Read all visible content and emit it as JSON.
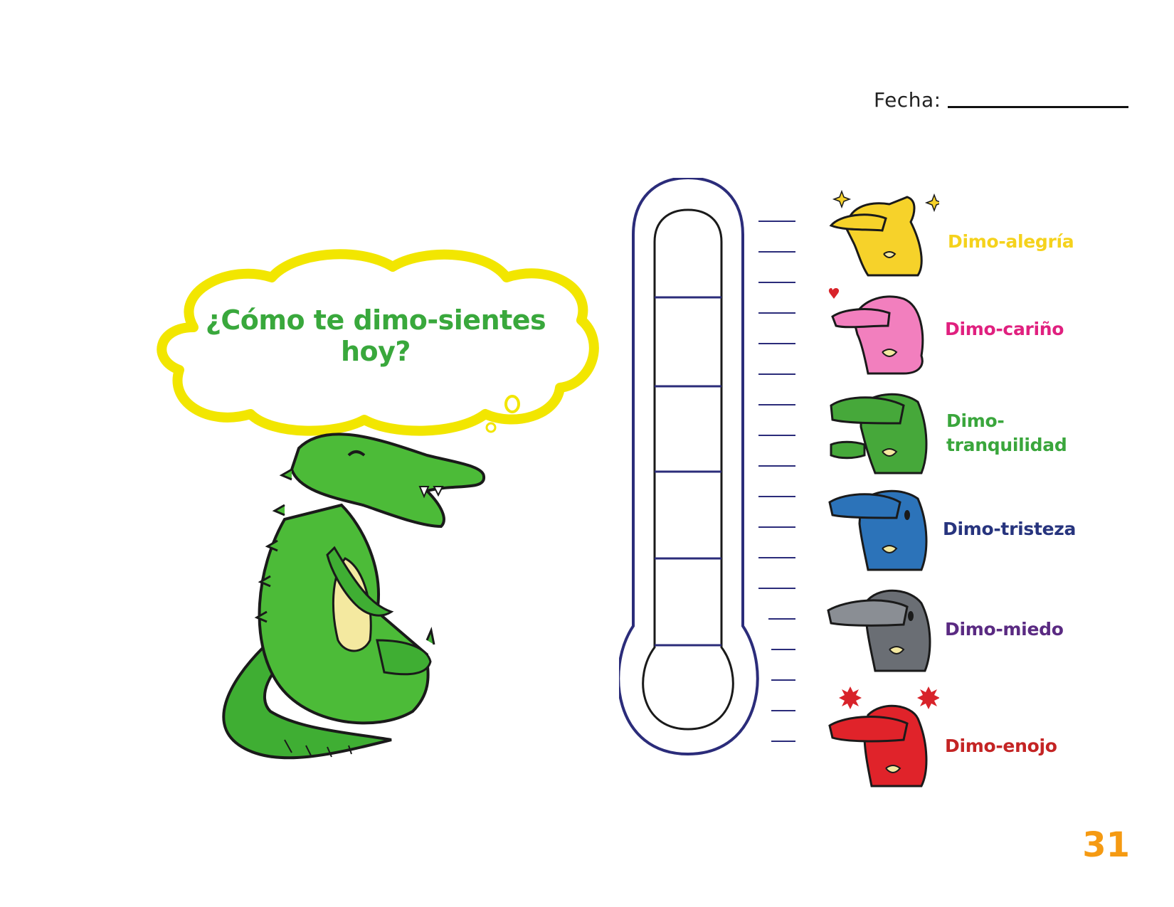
{
  "header": {
    "date_label": "Fecha:"
  },
  "bubble": {
    "title": "¿Cómo te dimo-sientes hoy?"
  },
  "emotions": [
    {
      "label": "Dimo-alegría",
      "color": "#f5d21c"
    },
    {
      "label": "Dimo-cariño",
      "color": "#e0207f"
    },
    {
      "label_line1": "Dimo-",
      "label_line2": "tranquilidad",
      "color": "#3aa63c"
    },
    {
      "label": "Dimo-tristeza",
      "color": "#27347e"
    },
    {
      "label": "Dimo-miedo",
      "color": "#5a2a82"
    },
    {
      "label": "Dimo-enojo",
      "color": "#c42424"
    }
  ],
  "illustrations": {
    "main": "green-crocodile-sitting",
    "faces": [
      "yellow-crocodile-face",
      "pink-crocodile-face",
      "green-crocodile-face",
      "blue-crocodile-face",
      "gray-crocodile-face",
      "red-crocodile-face"
    ]
  },
  "colors": {
    "thermometer_outline": "#2b2c7a",
    "bubble_outline": "#f2e600",
    "page_number": "#f59a12"
  },
  "footer": {
    "page_number": "31"
  }
}
